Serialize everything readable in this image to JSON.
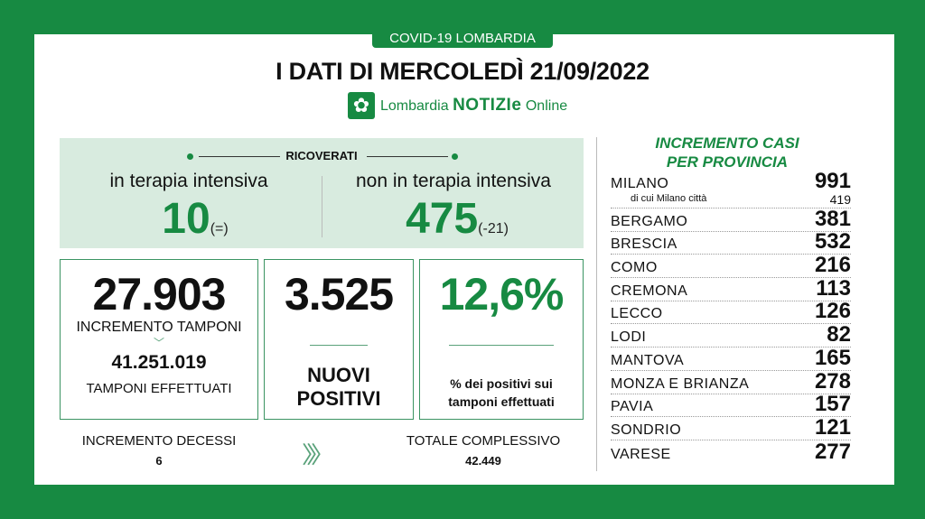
{
  "header": {
    "tab": "COVID-19 LOMBARDIA",
    "title": "I DATI DI MERCOLEDÌ 21/09/2022",
    "logo": {
      "name": "Lombardia",
      "bold": "NOTIZIe",
      "suffix": "Online"
    }
  },
  "ricoverati": {
    "title": "RICOVERATI",
    "intensive": {
      "label": "in terapia intensiva",
      "value": "10",
      "change": "(=)"
    },
    "non_intensive": {
      "label": "non in terapia intensiva",
      "value": "475",
      "change": "(-21)"
    }
  },
  "tamponi": {
    "value": "27.903",
    "label": "INCREMENTO TAMPONI",
    "total": "41.251.019",
    "total_label": "TAMPONI EFFETTUATI"
  },
  "positivi": {
    "value": "3.525",
    "label_1": "NUOVI",
    "label_2": "POSITIVI"
  },
  "percentuale": {
    "value": "12,6%",
    "label_1": "% dei positivi sui",
    "label_2": "tamponi effettuati"
  },
  "decessi": {
    "label": "INCREMENTO DECESSI",
    "value": "6",
    "total_label": "TOTALE COMPLESSIVO",
    "total": "42.449"
  },
  "province": {
    "title_1": "INCREMENTO CASI",
    "title_2": "PER PROVINCIA",
    "milano": {
      "name": "MILANO",
      "value": "991",
      "sub_label": "di cui Milano città",
      "sub_value": "419"
    },
    "items": [
      {
        "name": "BERGAMO",
        "value": "381"
      },
      {
        "name": "BRESCIA",
        "value": "532"
      },
      {
        "name": "COMO",
        "value": "216"
      },
      {
        "name": "CREMONA",
        "value": "113"
      },
      {
        "name": "LECCO",
        "value": "126"
      },
      {
        "name": "LODI",
        "value": "82"
      },
      {
        "name": "MANTOVA",
        "value": "165"
      },
      {
        "name": "MONZA E BRIANZA",
        "value": "278"
      },
      {
        "name": "PAVIA",
        "value": "157"
      },
      {
        "name": "SONDRIO",
        "value": "121"
      },
      {
        "name": "VARESE",
        "value": "277"
      }
    ]
  },
  "colors": {
    "brand": "#178a42",
    "panel_bg": "#d8ebdf"
  }
}
